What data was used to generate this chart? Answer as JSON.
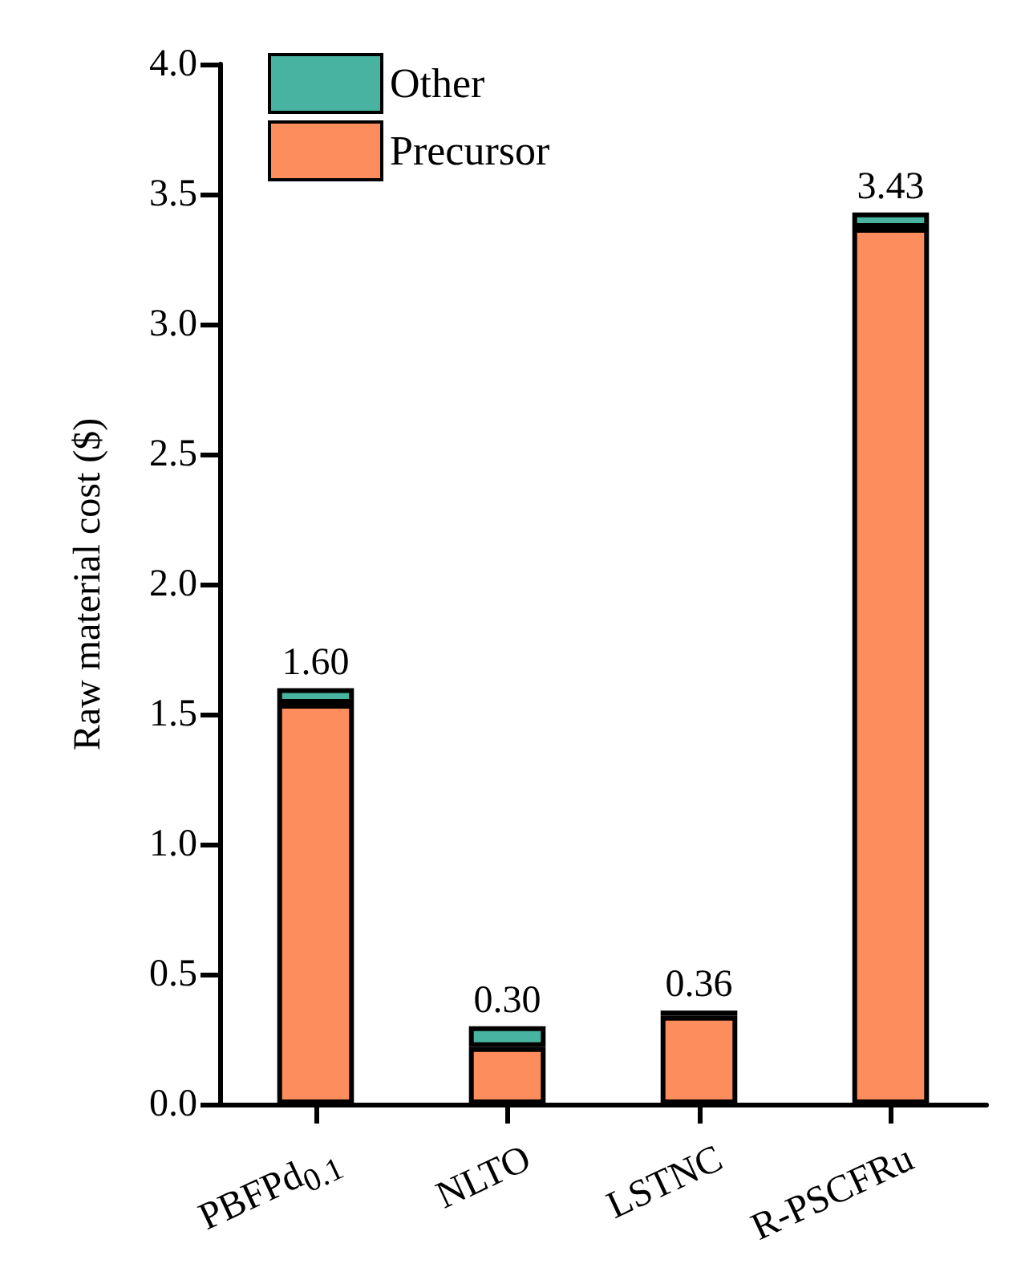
{
  "chart_data": {
    "type": "bar",
    "ylabel": "Raw material cost ($)",
    "categories": [
      "PBFPd$_{0.1}$",
      "NLTO",
      "LSTNC",
      "R-PSCFRu"
    ],
    "stacked": true,
    "series": [
      {
        "name": "Precursor",
        "color": "#fd8d5c",
        "values": [
          1.54,
          0.22,
          0.34,
          3.37
        ]
      },
      {
        "name": "Other",
        "color": "#48b3a0",
        "values": [
          0.06,
          0.08,
          0.02,
          0.06
        ]
      }
    ],
    "totals": [
      "1.60",
      "0.30",
      "0.36",
      "3.43"
    ],
    "ylim": [
      0,
      4.0
    ],
    "yticks": [
      {
        "value": 0,
        "label": "0.0"
      },
      {
        "value": 0.5,
        "label": "0.5"
      },
      {
        "value": 1,
        "label": "1.0"
      },
      {
        "value": 1.5,
        "label": "1.5"
      },
      {
        "value": 2,
        "label": "2.0"
      },
      {
        "value": 2.5,
        "label": "2.5"
      },
      {
        "value": 3,
        "label": "3.0"
      },
      {
        "value": 3.5,
        "label": "3.5"
      },
      {
        "value": 4,
        "label": "4.0"
      }
    ],
    "grid": false,
    "legend": "top left"
  }
}
